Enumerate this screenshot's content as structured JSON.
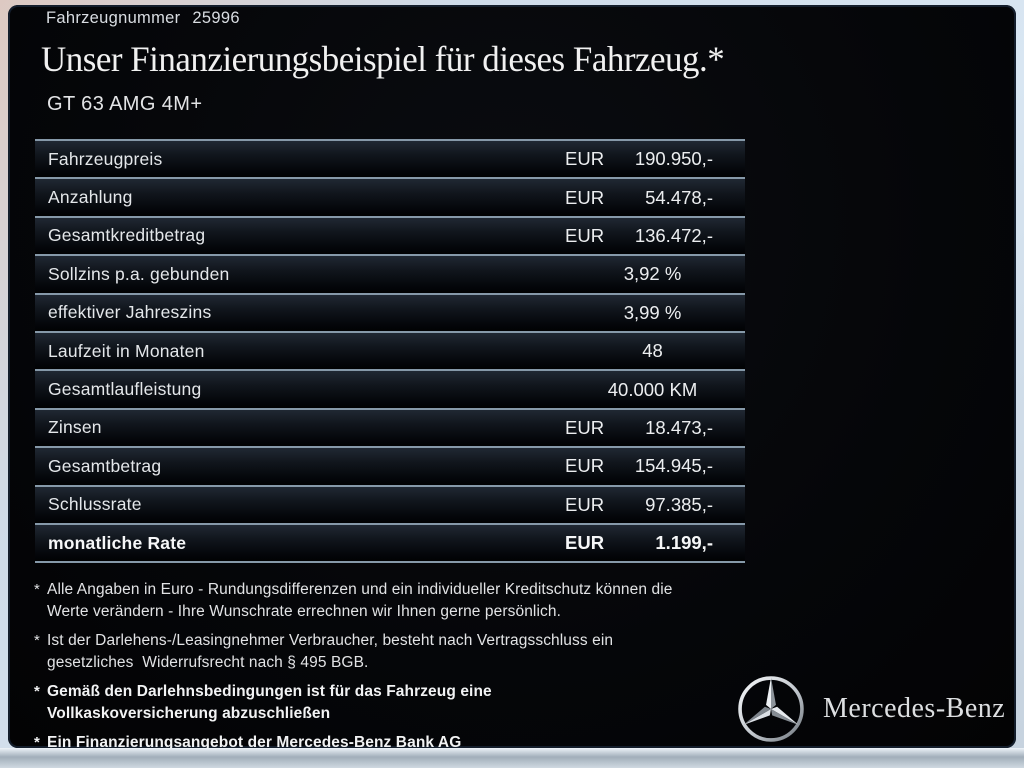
{
  "header": {
    "vehicle_number_label": "Fahrzeugnummer",
    "vehicle_number": "25996"
  },
  "title": "Unser Finanzierungsbeispiel für dieses Fahrzeug.*",
  "model": "GT 63 AMG 4M+",
  "financing_table": {
    "rows": [
      {
        "label": "Fahrzeugpreis",
        "currency": "EUR",
        "value": "190.950,-"
      },
      {
        "label": "Anzahlung",
        "currency": "EUR",
        "value": "54.478,-"
      },
      {
        "label": "Gesamtkreditbetrag",
        "currency": "EUR",
        "value": "136.472,-"
      },
      {
        "label": "Sollzins p.a. gebunden",
        "value": "3,92 %",
        "align": "center"
      },
      {
        "label": "effektiver Jahreszins",
        "value": "3,99 %",
        "align": "center"
      },
      {
        "label": "Laufzeit in Monaten",
        "value": "48",
        "align": "center"
      },
      {
        "label": "Gesamtlaufleistung",
        "value": "40.000 KM",
        "align": "center"
      },
      {
        "label": "Zinsen",
        "currency": "EUR",
        "value": "18.473,-"
      },
      {
        "label": "Gesamtbetrag",
        "currency": "EUR",
        "value": "154.945,-"
      },
      {
        "label": "Schlussrate",
        "currency": "EUR",
        "value": "97.385,-"
      },
      {
        "label": "monatliche Rate",
        "currency": "EUR",
        "value": "1.199,-",
        "bold": true
      }
    ]
  },
  "footnotes": [
    {
      "marker": "*",
      "bold": false,
      "lines": [
        "Alle Angaben in Euro - Rundungsdifferenzen und ein individueller Kreditschutz können die",
        "Werte verändern - Ihre Wunschrate errechnen wir Ihnen gerne persönlich."
      ]
    },
    {
      "marker": "*",
      "bold": false,
      "lines": [
        "Ist der Darlehens-/Leasingnehmer Verbraucher, besteht nach Vertragsschluss ein",
        "gesetzliches  Widerrufsrecht nach § 495 BGB."
      ]
    },
    {
      "marker": "*",
      "bold": true,
      "lines": [
        "Gemäß den Darlehnsbedingungen ist für das Fahrzeug eine",
        "Vollkaskoversicherung abzuschließen"
      ]
    },
    {
      "marker": "*",
      "bold": true,
      "lines": [
        "Ein Finanzierungsangebot der Mercedes-Benz Bank AG"
      ]
    }
  ],
  "brand": {
    "name": "Mercedes-Benz",
    "logo_icon": "mercedes-star-icon"
  },
  "colors": {
    "line": "#8699a9",
    "panel-bg": "#050609",
    "text-primary": "#e8e8e8"
  }
}
